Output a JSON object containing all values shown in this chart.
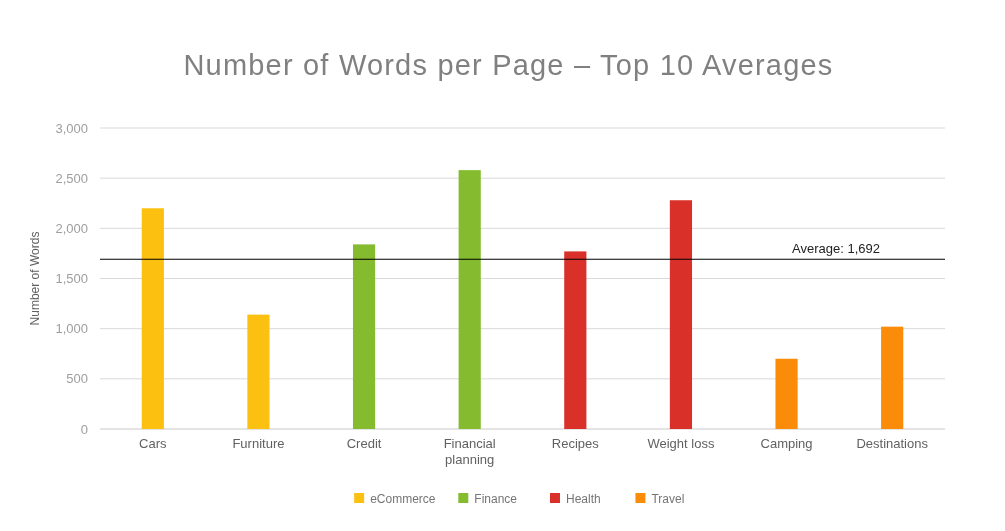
{
  "chart_data": {
    "type": "bar",
    "title": "Number of Words per Page – Top 10 Averages",
    "ylabel": "Number of Words",
    "categories": [
      "Cars",
      "Furniture",
      "Credit",
      "Financial planning",
      "Recipes",
      "Weight loss",
      "Camping",
      "Destinations"
    ],
    "series": [
      {
        "name": "eCommerce",
        "color": "#fcc010",
        "values": [
          2200,
          1140,
          null,
          null,
          null,
          null,
          null,
          null
        ]
      },
      {
        "name": "Finance",
        "color": "#85bb2f",
        "values": [
          null,
          null,
          1840,
          2580,
          null,
          null,
          null,
          null
        ]
      },
      {
        "name": "Health",
        "color": "#d93129",
        "values": [
          null,
          null,
          null,
          null,
          1770,
          2280,
          null,
          null
        ]
      },
      {
        "name": "Travel",
        "color": "#fb8c0a",
        "values": [
          null,
          null,
          null,
          null,
          null,
          null,
          700,
          1020
        ]
      }
    ],
    "ylim": [
      0,
      3000
    ],
    "yticks": [
      0,
      {
        "value": 500,
        "label": "500"
      },
      {
        "value": 1000,
        "label": "1,000"
      },
      {
        "value": 1500,
        "label": "1,500"
      },
      {
        "value": 2000,
        "label": "2,000"
      },
      {
        "value": 2500,
        "label": "2,500"
      },
      {
        "value": 3000,
        "label": "3,000"
      }
    ],
    "grid": "y",
    "legend": "bottom",
    "ref_lines": [
      {
        "axis": "y",
        "value": 1692,
        "label": "Average: 1,692",
        "color": "#000000"
      }
    ]
  }
}
